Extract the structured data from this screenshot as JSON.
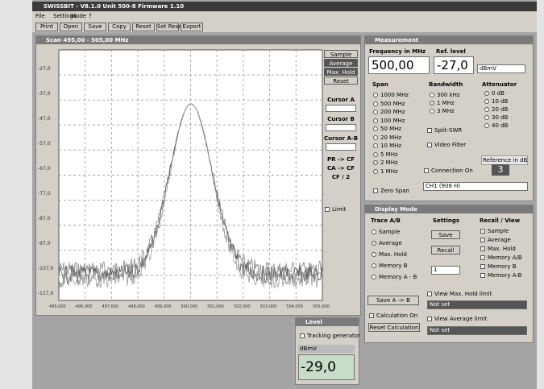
{
  "app": {
    "title": "SWISSBIT - V8.1.0    Unit 500-8    Firmware 1.10",
    "menu": [
      "File",
      "Settings",
      "Mode",
      "?"
    ],
    "toolbar": [
      "Print",
      "Open",
      "Save",
      "Copy",
      "Reset",
      "Set Reset",
      "Export"
    ]
  },
  "graph": {
    "title": "Scan 495,00 - 505,00 MHz",
    "y_labels": [
      "-27,0",
      "-37,0",
      "-47,0",
      "-57,0",
      "-67,0",
      "-77,0",
      "-87,0",
      "-97,0",
      "-107,0",
      "-117,0"
    ],
    "x_labels": [
      "495,000",
      "496,000",
      "497,000",
      "498,000",
      "499,000",
      "500,000",
      "501,000",
      "502,000",
      "503,000",
      "504,000",
      "505,000"
    ],
    "side_buttons": [
      "Sample",
      "Average",
      "Max. Hold",
      "Reset"
    ],
    "cursors": [
      "Cursor A",
      "Cursor B",
      "Cursor A-B"
    ],
    "moves": [
      "PR -> CF",
      "CA -> CF",
      "CF / 2"
    ],
    "limit": "Limit"
  },
  "measurement": {
    "title": "Measurement",
    "frequency_label": "Frequency in MHz",
    "frequency": "500,00",
    "ref_label": "Ref. level",
    "ref": "-27,0",
    "unit": "dBmV",
    "span_label": "Span",
    "spans": [
      "1000 MHz",
      "500 MHz",
      "200 MHz",
      "100 MHz",
      "50 MHz",
      "20 MHz",
      "10 MHz",
      "5 MHz",
      "2 MHz",
      "1 MHz"
    ],
    "zero_span": "Zero Span",
    "bandwidth_label": "Bandwidth",
    "bandwidths": [
      "300 kHz",
      "1 MHz",
      "3 MHz"
    ],
    "attenuator_label": "Attenuator",
    "attenuators": [
      "0 dB",
      "10 dB",
      "20 dB",
      "30 dB",
      "40 dB"
    ],
    "split": "Split-SWR",
    "video": "Video Filter",
    "reference_label": "Reference in dB",
    "reference": "3",
    "connection": "Connection On",
    "channel": "CH1 (906 H)"
  },
  "display_mode": {
    "title": "Display Mode",
    "trace_label": "Trace A/B",
    "traces": [
      "Sample",
      "Average",
      "Max. Hold",
      "Memory B",
      "Memory A - B"
    ],
    "settings_label": "Settings",
    "save": "Save",
    "recall": "Recall",
    "slot": "1",
    "view_label": "Recall / View",
    "views": [
      "Sample",
      "Average",
      "Max. Hold",
      "Memory A/B",
      "Memory B",
      "Memory A-B"
    ],
    "save_ab": "Save A -> B",
    "calc": "Calculation On",
    "reset_calc": "Reset Calculation",
    "max_limit": "View Max. Hold limit",
    "max_limit_value": "Not set",
    "avg_limit": "View Average limit",
    "avg_limit_value": "Not set"
  },
  "level": {
    "title": "Level",
    "tracking": "Tracking generator",
    "unit": "dBmV",
    "value": "-29,0"
  }
}
